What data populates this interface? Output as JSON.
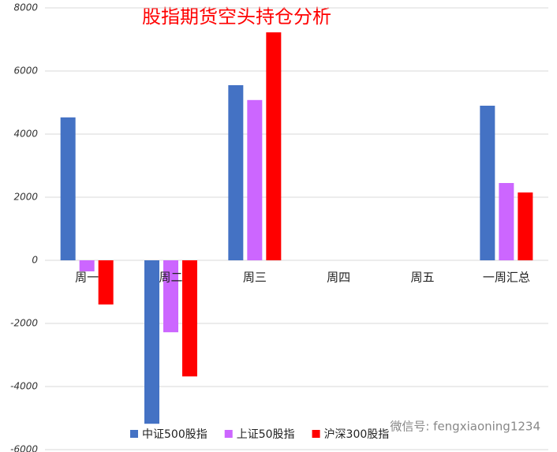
{
  "chart_data": {
    "type": "bar",
    "title": "股指期货空头持仓分析",
    "categories": [
      "周一",
      "周二",
      "周三",
      "周四",
      "周五",
      "一周汇总"
    ],
    "series": [
      {
        "name": "中证500股指",
        "color": "#4472c4",
        "values": [
          4530,
          -5180,
          5550,
          null,
          null,
          4900
        ]
      },
      {
        "name": "上证50股指",
        "color": "#cc66ff",
        "values": [
          -350,
          -2280,
          5080,
          null,
          null,
          2450
        ]
      },
      {
        "name": "沪深300股指",
        "color": "#ff0000",
        "values": [
          -1400,
          -3680,
          7225,
          null,
          null,
          2150
        ]
      }
    ],
    "ylim": [
      -6000,
      8000
    ],
    "yticks": [
      -6000,
      -4000,
      -2000,
      0,
      2000,
      4000,
      6000,
      8000
    ],
    "grid": true,
    "annotation": "微信号: fengxiaoning1234"
  }
}
